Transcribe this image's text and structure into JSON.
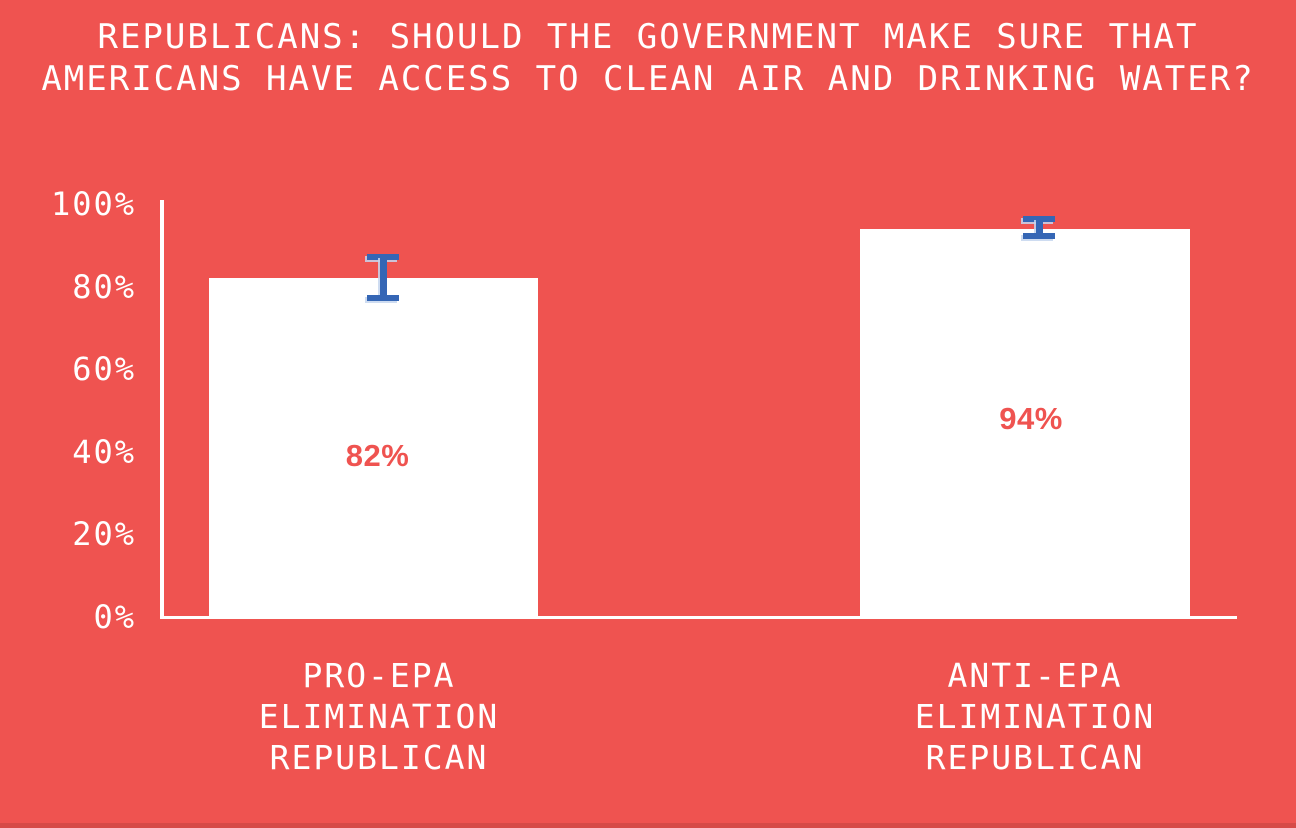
{
  "chart_data": {
    "type": "bar",
    "title": "REPUBLICANS: SHOULD THE GOVERNMENT MAKE SURE THAT AMERICANS HAVE ACCESS TO CLEAN AIR AND DRINKING WATER?",
    "title_lines": [
      "REPUBLICANS: SHOULD THE GOVERNMENT MAKE SURE THAT",
      "AMERICANS HAVE ACCESS TO CLEAN AIR AND DRINKING WATER?"
    ],
    "categories": [
      "PRO-EPA ELIMINATION REPUBLICAN",
      "ANTI-EPA ELIMINATION REPUBLICAN"
    ],
    "values": [
      82,
      94
    ],
    "bars": [
      {
        "category_lines": [
          "PRO-EPA",
          "ELIMINATION",
          "REPUBLICAN"
        ],
        "value": 82,
        "value_label": "82%",
        "error_low": 76.5,
        "error_high": 88
      },
      {
        "category_lines": [
          "ANTI-EPA",
          "ELIMINATION",
          "REPUBLICAN"
        ],
        "value": 94,
        "value_label": "94%",
        "error_low": 91.5,
        "error_high": 97
      }
    ],
    "yticks": [
      {
        "label": "100%",
        "value": 100
      },
      {
        "label": "80%",
        "value": 80
      },
      {
        "label": "60%",
        "value": 60
      },
      {
        "label": "40%",
        "value": 40
      },
      {
        "label": "20%",
        "value": 20
      },
      {
        "label": "0%",
        "value": 0
      }
    ],
    "ylim": [
      0,
      100
    ],
    "xlabel": "",
    "ylabel": "",
    "grid": false,
    "legend": false,
    "colors": {
      "background": "#ef5350",
      "bar_fill": "#ffffff",
      "axis": "#ffffff",
      "tick_text": "#ffffff",
      "title_text": "#ffffff",
      "value_label": "#ef5350",
      "error_bar": "#3566b5"
    }
  }
}
